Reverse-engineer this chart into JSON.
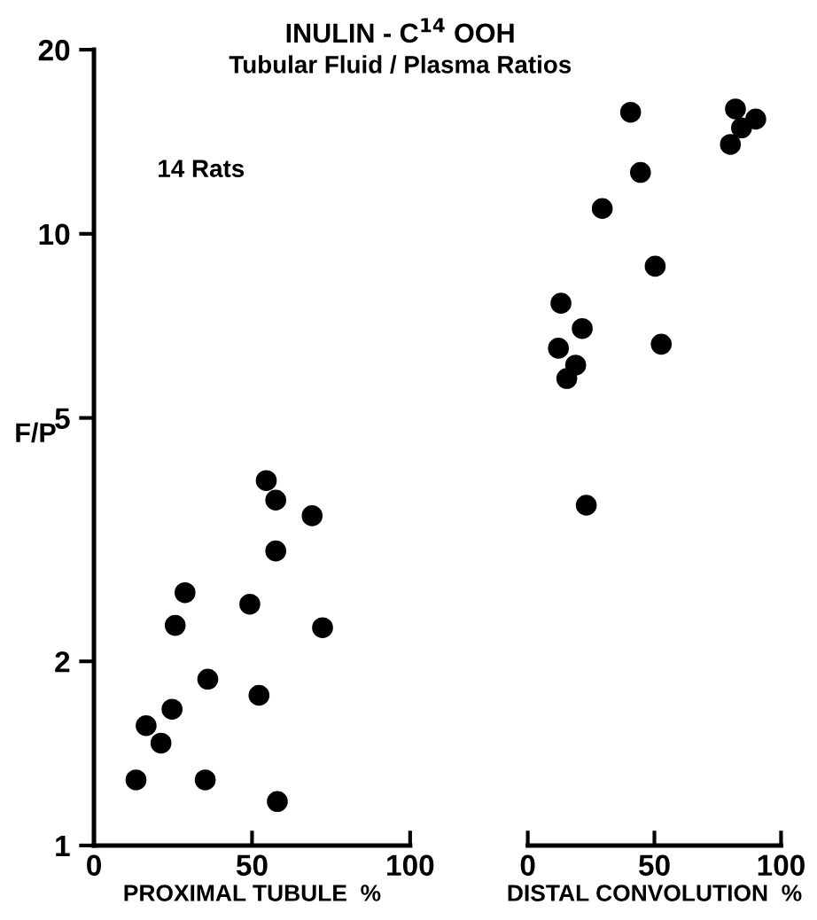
{
  "chart_data": [
    {
      "type": "scatter",
      "title": "INULIN - C$^{14}$ OOH",
      "subtitle": "Tubular Fluid / Plasma Ratios",
      "xlabel": "PROXIMAL TUBULE  %",
      "ylabel": "F/P",
      "annotations": [
        "14 Rats"
      ],
      "log": "y",
      "marker": "circle",
      "grid": false,
      "series": [
        {
          "color": "#000000",
          "x": [
            54.5,
            57.5,
            69,
            57.5,
            28.8,
            49.3,
            25.7,
            72.3,
            36,
            52.2,
            24.7,
            16.5,
            21.2,
            13.3,
            35.2,
            58
          ],
          "values": [
            3.95,
            3.67,
            3.46,
            3.03,
            2.59,
            2.48,
            2.29,
            2.27,
            1.87,
            1.76,
            1.67,
            1.57,
            1.47,
            1.28,
            1.28,
            1.18
          ]
        }
      ],
      "xlim": [
        0,
        100
      ],
      "xticks": [
        0,
        50,
        100
      ],
      "ylim": [
        1,
        20
      ],
      "yticks": [
        1,
        2,
        5,
        10,
        20
      ]
    },
    {
      "type": "scatter",
      "xlabel": "DISTAL CONVOLUTION  %",
      "log": "y",
      "marker": "circle",
      "grid": false,
      "tick_labels": "x",
      "series": [
        {
          "color": "#000000",
          "x": [
            40.6,
            82,
            90,
            84.4,
            80,
            44.5,
            29.4,
            50.3,
            13.1,
            21.5,
            12.1,
            52.7,
            18.9,
            15.4,
            23.1
          ],
          "values": [
            15.8,
            16.0,
            15.4,
            14.9,
            14.0,
            12.6,
            11.0,
            8.85,
            7.7,
            7.0,
            6.5,
            6.6,
            6.1,
            5.8,
            3.6
          ]
        }
      ],
      "xlim": [
        0,
        100
      ],
      "xticks": [
        0,
        50,
        100
      ],
      "ylim": [
        1,
        20
      ],
      "yticks": [
        1,
        2,
        5,
        10,
        20
      ]
    }
  ]
}
